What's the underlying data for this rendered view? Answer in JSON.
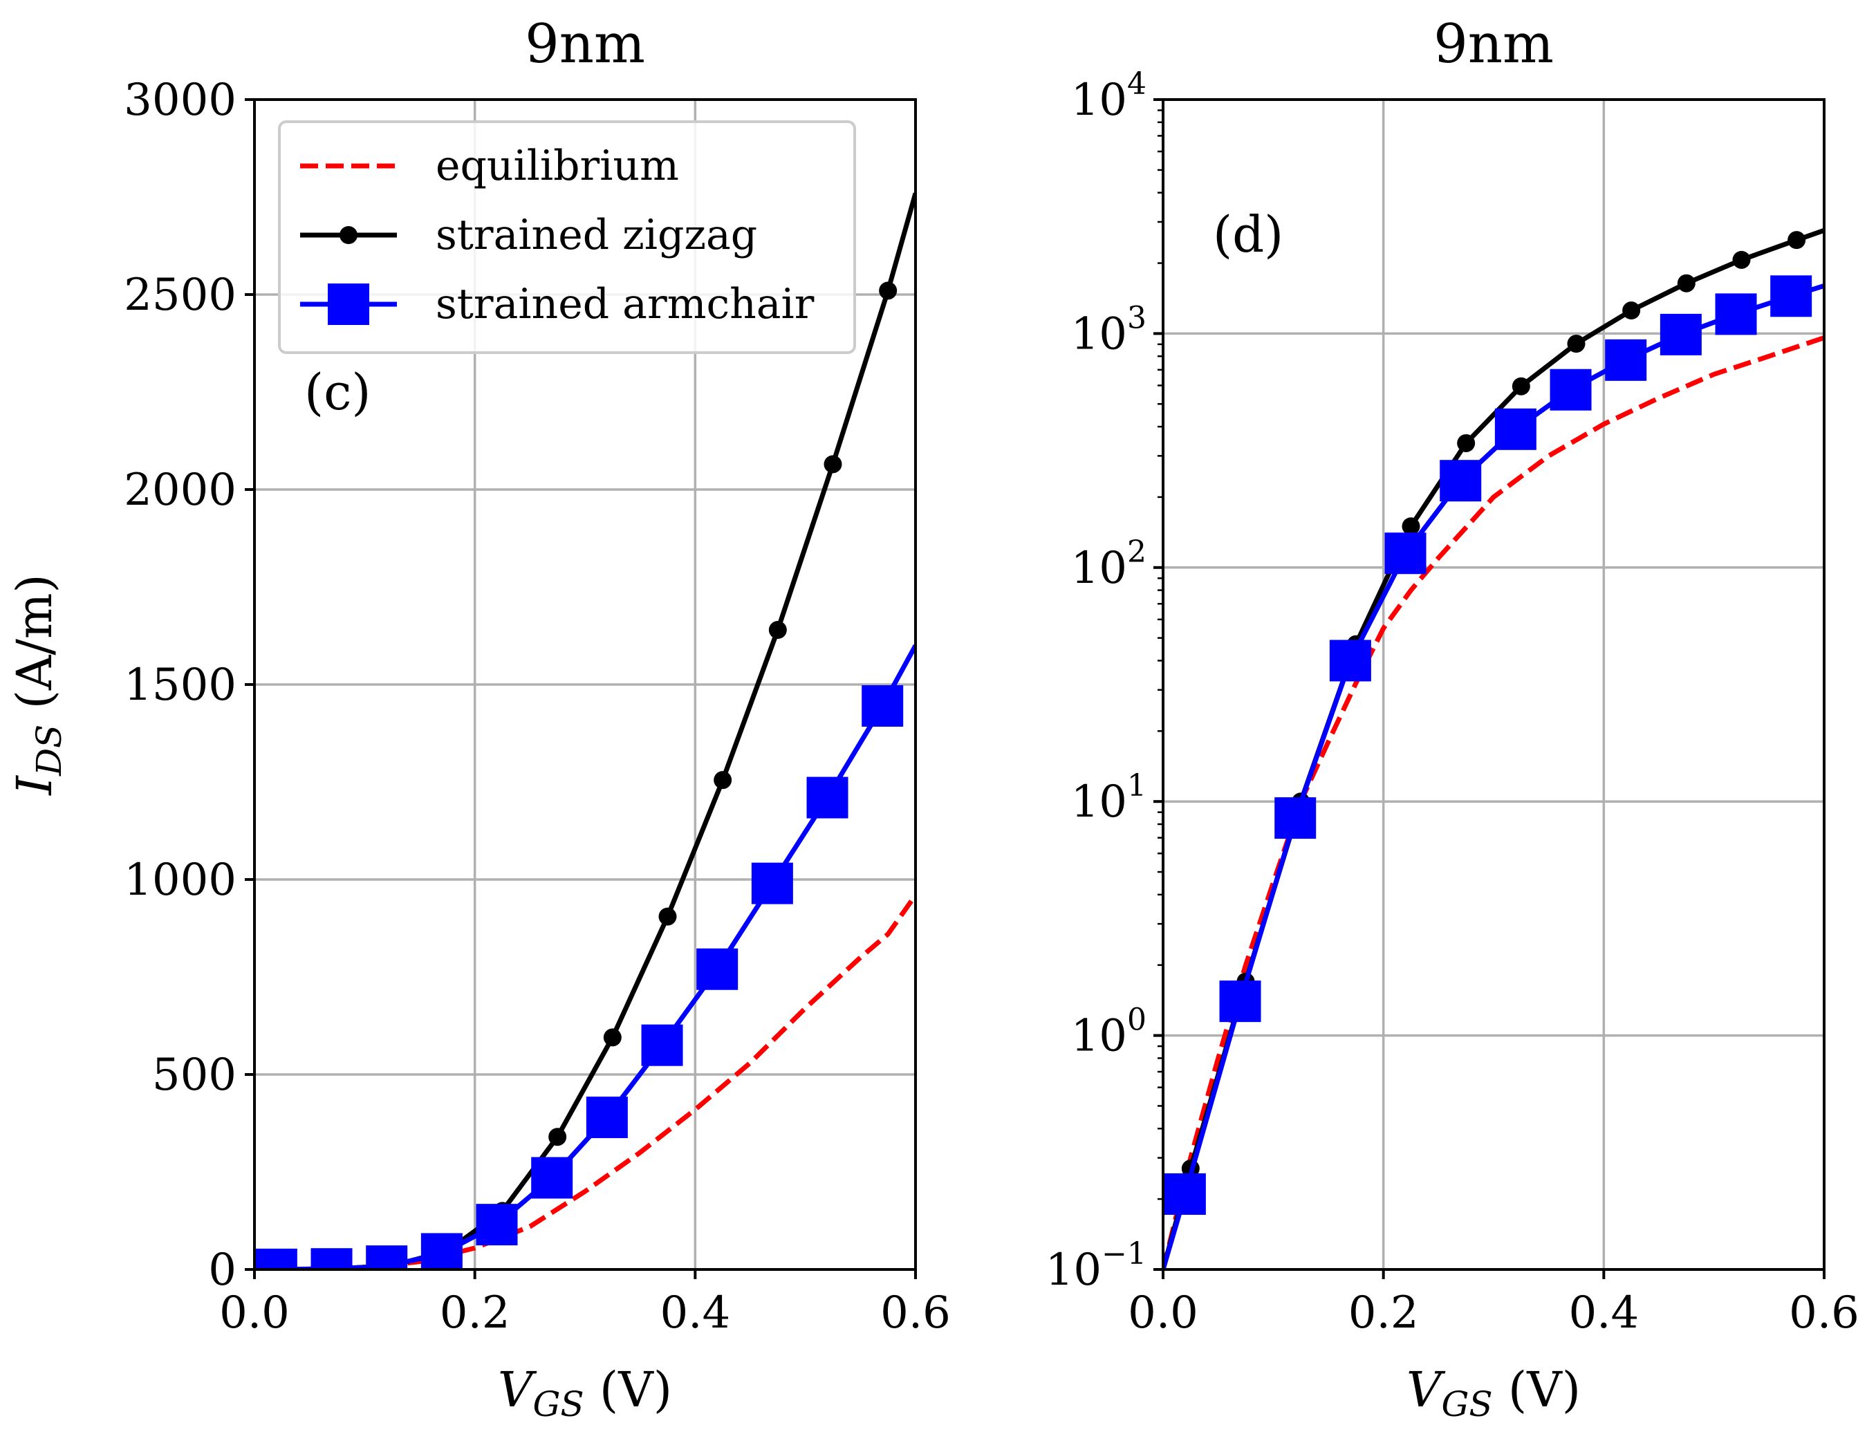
{
  "chart_data": [
    {
      "panel": "c",
      "type": "line",
      "title": "9nm",
      "panel_label": "(c)",
      "xlabel_main": "V",
      "xlabel_sub": "GS",
      "xlabel_unit": " (V)",
      "ylabel_main": "I",
      "ylabel_sub": "DS",
      "ylabel_unit": " (A/m)",
      "xlim": [
        0.0,
        0.6
      ],
      "ylim": [
        0,
        3000
      ],
      "yscale": "linear",
      "grid": true,
      "legend_position": "top-left",
      "x_ticks": [
        0.0,
        0.2,
        0.4,
        0.6
      ],
      "x_tick_labels": [
        "0.0",
        "0.2",
        "0.4",
        "0.6"
      ],
      "y_ticks": [
        0,
        500,
        1000,
        1500,
        2000,
        2500,
        3000
      ],
      "y_tick_labels": [
        "0",
        "500",
        "1000",
        "1500",
        "2000",
        "2500",
        "3000"
      ],
      "series": [
        {
          "name": "equilibrium",
          "color": "#ff0000",
          "style": "dashed",
          "marker": "none",
          "x": [
            0.0,
            0.05,
            0.1,
            0.15,
            0.2,
            0.25,
            0.3,
            0.35,
            0.4,
            0.45,
            0.5,
            0.55,
            0.575,
            0.6
          ],
          "y": [
            0,
            1,
            4,
            20,
            55,
            110,
            200,
            300,
            410,
            530,
            670,
            800,
            860,
            960
          ]
        },
        {
          "name": "strained zigzag",
          "color": "#000000",
          "style": "solid",
          "marker": "circle",
          "x": [
            0.0,
            0.025,
            0.075,
            0.125,
            0.175,
            0.225,
            0.275,
            0.325,
            0.375,
            0.425,
            0.475,
            0.525,
            0.575,
            0.6
          ],
          "y": [
            0,
            0.3,
            1.7,
            10,
            47,
            150,
            340,
            595,
            905,
            1255,
            1640,
            2065,
            2510,
            2760
          ],
          "marker_x": [
            0.025,
            0.075,
            0.125,
            0.175,
            0.225,
            0.275,
            0.325,
            0.375,
            0.425,
            0.475,
            0.525,
            0.575
          ],
          "marker_y": [
            0.27,
            1.7,
            10,
            47,
            150,
            340,
            595,
            905,
            1255,
            1640,
            2065,
            2510
          ]
        },
        {
          "name": "strained armchair",
          "color": "#0000ff",
          "style": "solid",
          "marker": "square",
          "x": [
            0.0,
            0.02,
            0.07,
            0.12,
            0.17,
            0.22,
            0.27,
            0.32,
            0.37,
            0.42,
            0.47,
            0.52,
            0.57,
            0.6
          ],
          "y": [
            0.1,
            0.21,
            1.4,
            8.5,
            40,
            115,
            235,
            390,
            575,
            770,
            990,
            1210,
            1445,
            1600
          ],
          "marker_x": [
            0.02,
            0.07,
            0.12,
            0.17,
            0.22,
            0.27,
            0.32,
            0.37,
            0.42,
            0.47,
            0.52,
            0.57
          ],
          "marker_y": [
            0.21,
            1.4,
            8.5,
            40,
            115,
            235,
            390,
            575,
            770,
            990,
            1210,
            1445
          ]
        }
      ],
      "legend": [
        "equilibrium",
        "strained zigzag",
        "strained armchair"
      ]
    },
    {
      "panel": "d",
      "type": "line",
      "title": "9nm",
      "panel_label": "(d)",
      "xlabel_main": "V",
      "xlabel_sub": "GS",
      "xlabel_unit": " (V)",
      "xlim": [
        0.0,
        0.6
      ],
      "ylim": [
        0.1,
        10000
      ],
      "yscale": "log",
      "grid": true,
      "x_ticks": [
        0.0,
        0.2,
        0.4,
        0.6
      ],
      "x_tick_labels": [
        "0.0",
        "0.2",
        "0.4",
        "0.6"
      ],
      "y_ticks_exp": [
        -1,
        0,
        1,
        2,
        3,
        4
      ],
      "y_tick_base": "10",
      "y_tick_exp_labels": [
        "−1",
        "0",
        "1",
        "2",
        "3",
        "4"
      ],
      "series": [
        {
          "name": "equilibrium",
          "color": "#ff0000",
          "style": "dashed",
          "marker": "none",
          "x": [
            0.0,
            0.025,
            0.05,
            0.075,
            0.1,
            0.125,
            0.15,
            0.175,
            0.2,
            0.225,
            0.25,
            0.3,
            0.35,
            0.4,
            0.45,
            0.5,
            0.55,
            0.6
          ],
          "y": [
            0.1,
            0.3,
            0.8,
            2.0,
            4.5,
            10,
            18,
            32,
            55,
            80,
            110,
            200,
            300,
            410,
            530,
            670,
            800,
            960
          ]
        },
        {
          "name": "strained zigzag",
          "color": "#000000",
          "style": "solid",
          "marker": "circle",
          "x": [
            0.0,
            0.025,
            0.075,
            0.125,
            0.175,
            0.225,
            0.275,
            0.325,
            0.375,
            0.425,
            0.475,
            0.525,
            0.575,
            0.6
          ],
          "y": [
            0.1,
            0.27,
            1.7,
            10,
            47,
            150,
            340,
            595,
            905,
            1255,
            1640,
            2065,
            2510,
            2760
          ],
          "marker_x": [
            0.025,
            0.075,
            0.125,
            0.175,
            0.225,
            0.275,
            0.325,
            0.375,
            0.425,
            0.475,
            0.525,
            0.575
          ],
          "marker_y": [
            0.27,
            1.7,
            10,
            47,
            150,
            340,
            595,
            905,
            1255,
            1640,
            2065,
            2510
          ]
        },
        {
          "name": "strained armchair",
          "color": "#0000ff",
          "style": "solid",
          "marker": "square",
          "x": [
            0.0,
            0.02,
            0.07,
            0.12,
            0.17,
            0.22,
            0.27,
            0.32,
            0.37,
            0.42,
            0.47,
            0.52,
            0.57,
            0.6
          ],
          "y": [
            0.1,
            0.21,
            1.4,
            8.5,
            40,
            115,
            235,
            390,
            575,
            770,
            990,
            1210,
            1445,
            1600
          ],
          "marker_x": [
            0.02,
            0.07,
            0.12,
            0.17,
            0.22,
            0.27,
            0.32,
            0.37,
            0.42,
            0.47,
            0.52,
            0.57
          ],
          "marker_y": [
            0.21,
            1.4,
            8.5,
            40,
            115,
            235,
            390,
            575,
            770,
            990,
            1210,
            1445
          ]
        }
      ]
    }
  ]
}
